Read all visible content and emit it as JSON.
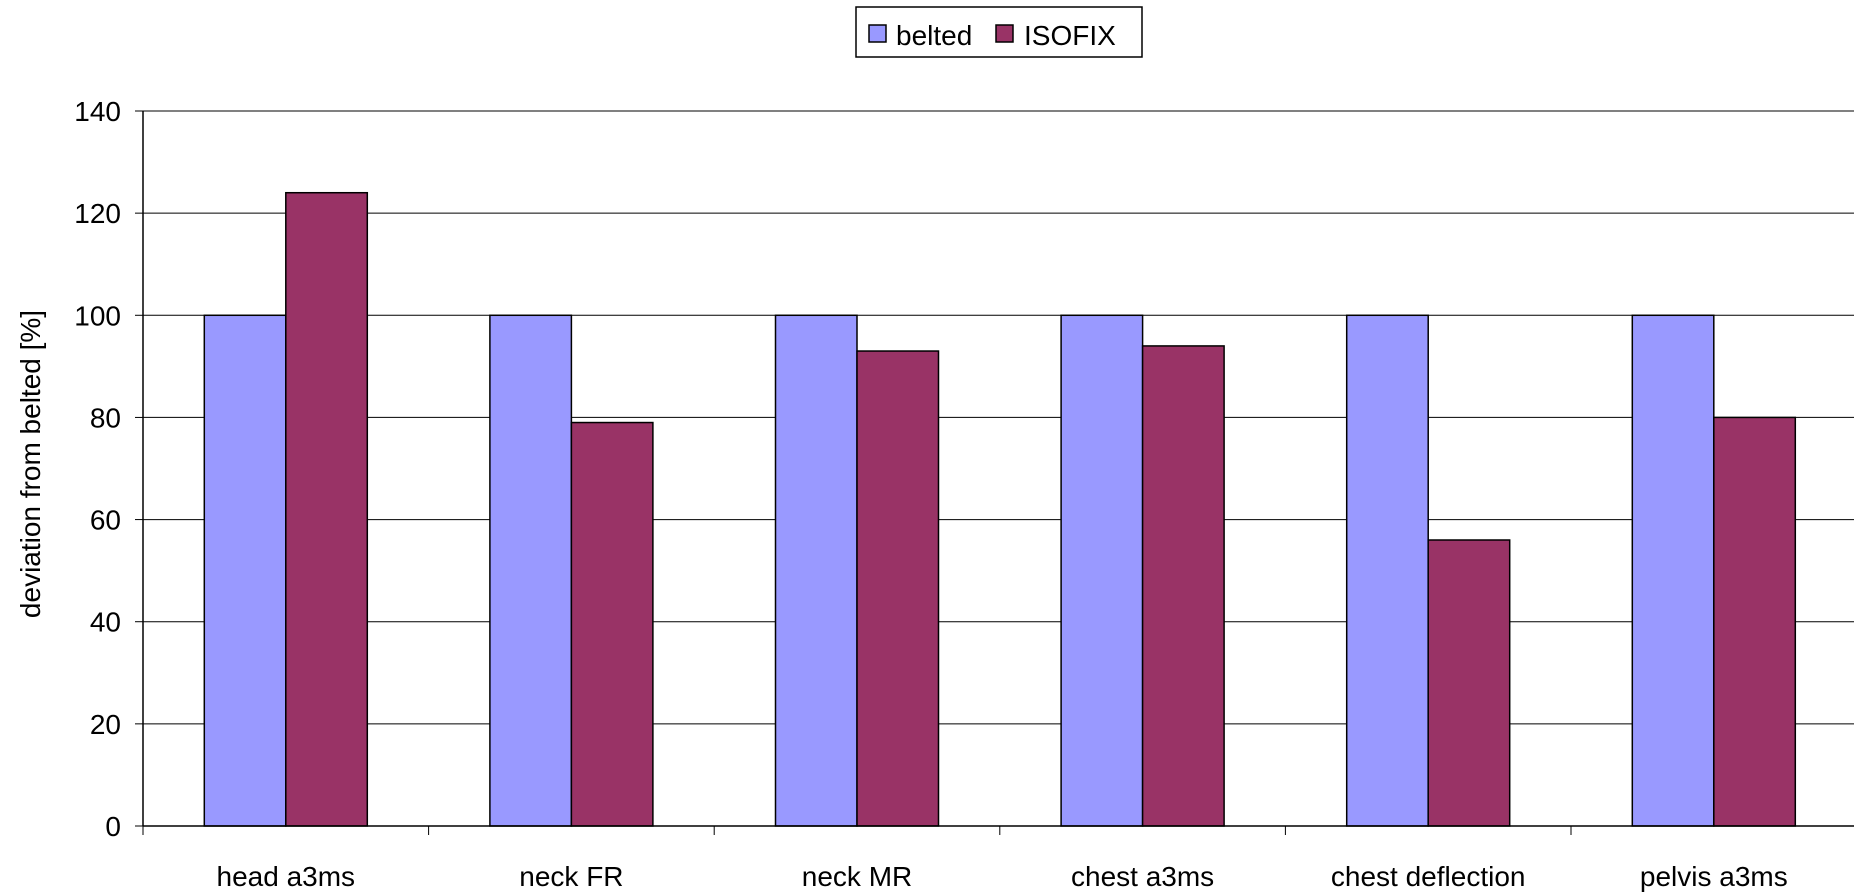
{
  "chart_data": {
    "type": "bar",
    "title": "",
    "xlabel": "",
    "ylabel": "deviation from belted [%]",
    "ylim": [
      0,
      140
    ],
    "ytick_step": 20,
    "yticks": [
      "0",
      "20",
      "40",
      "60",
      "80",
      "100",
      "120",
      "140"
    ],
    "grid": true,
    "legend_position": "top-center",
    "categories": [
      "head a3ms",
      "neck FR",
      "neck MR",
      "chest a3ms",
      "chest deflection",
      "pelvis a3ms"
    ],
    "series": [
      {
        "name": "belted",
        "color": "#9999ff",
        "values": [
          100,
          100,
          100,
          100,
          100,
          100
        ]
      },
      {
        "name": "ISOFIX",
        "color": "#993366",
        "values": [
          124,
          79,
          93,
          94,
          56,
          80
        ]
      }
    ]
  }
}
